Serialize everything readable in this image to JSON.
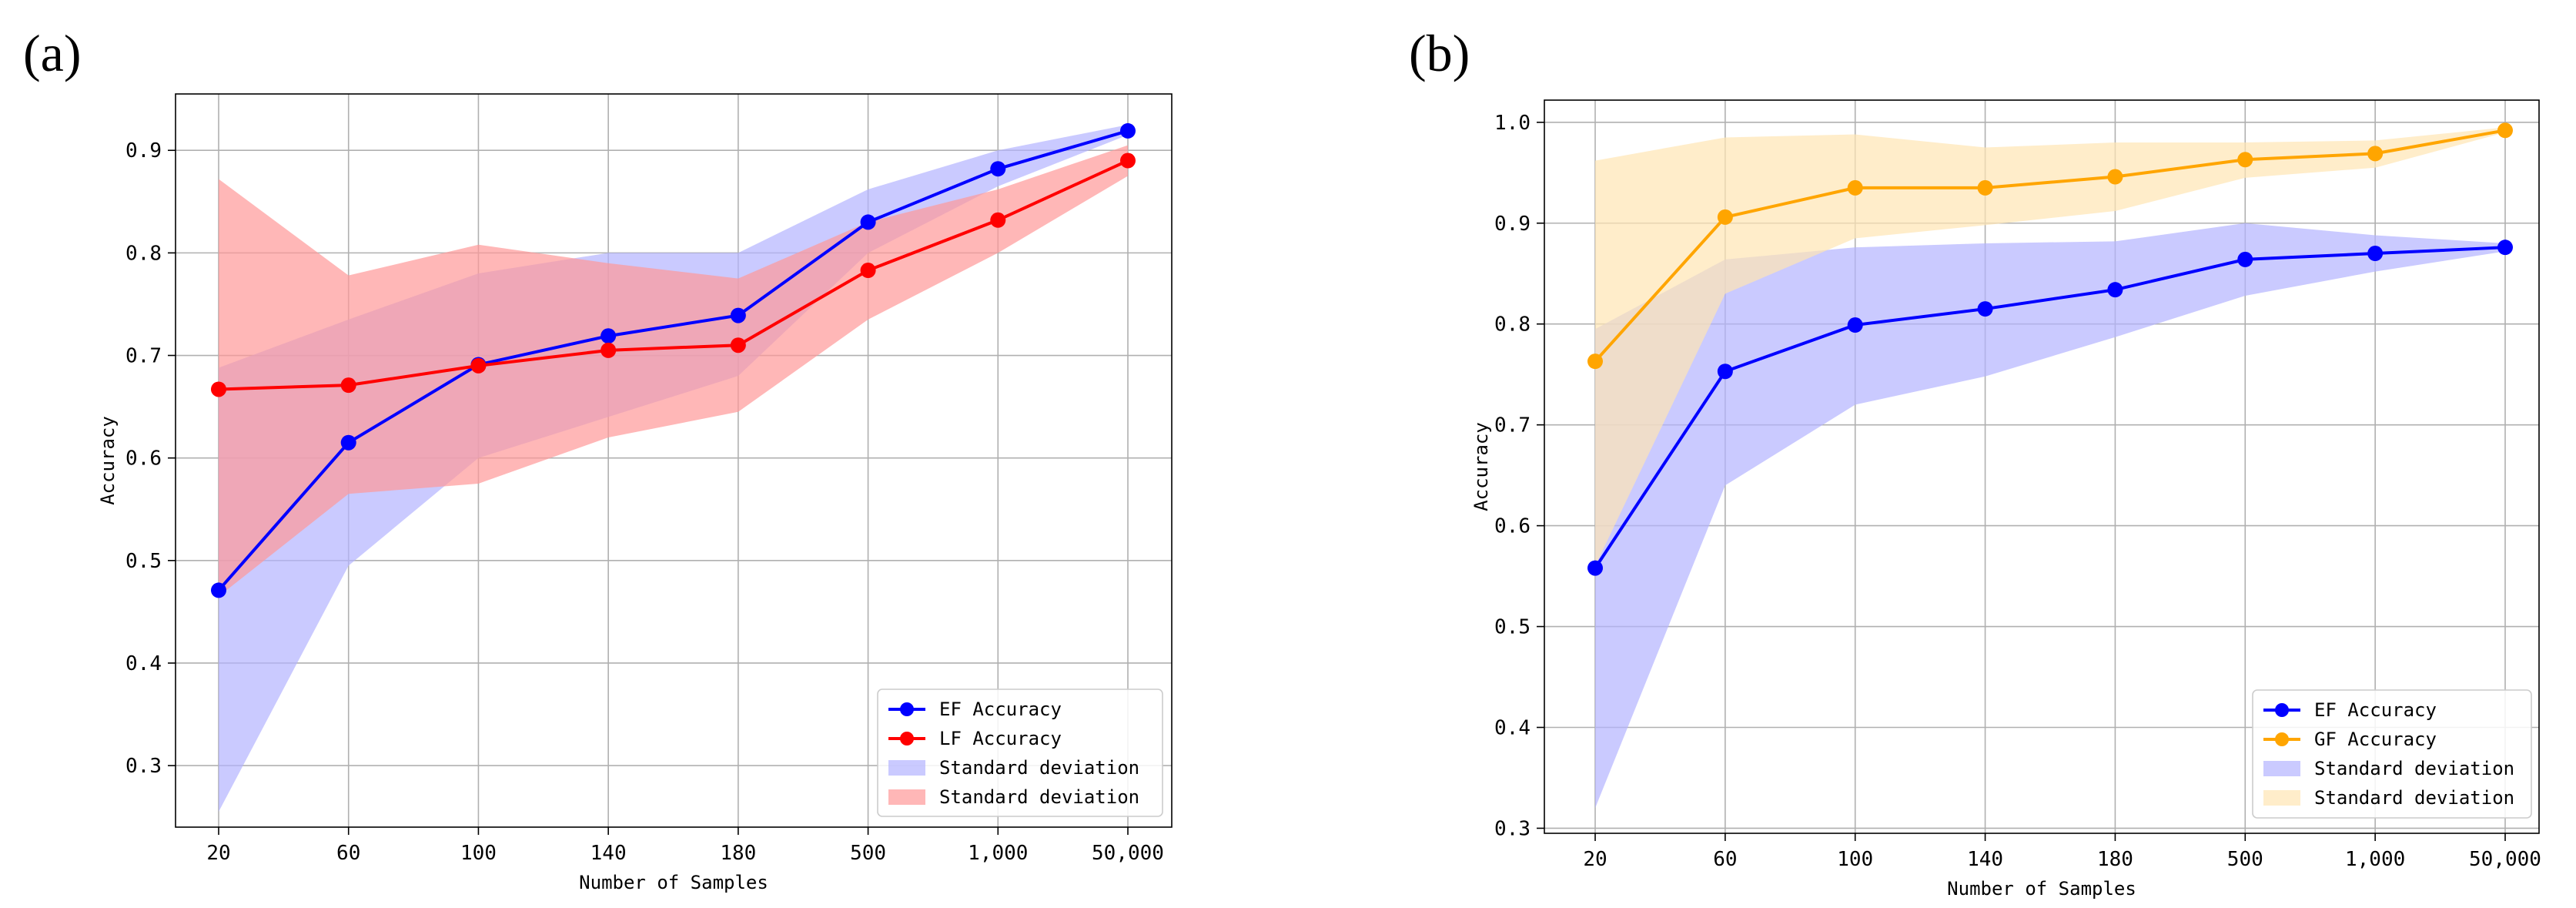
{
  "chart_data": [
    {
      "type": "line",
      "panel_label": "(a)",
      "categories": [
        "20",
        "60",
        "100",
        "140",
        "180",
        "500",
        "1,000",
        "50,000"
      ],
      "xlabel": "Number of Samples",
      "ylabel": "Accuracy",
      "ylim": [
        0.24,
        0.955
      ],
      "yticks": [
        "0.3",
        "0.4",
        "0.5",
        "0.6",
        "0.7",
        "0.8",
        "0.9"
      ],
      "grid": true,
      "legend_position": "lower-right",
      "series": [
        {
          "name": "EF Accuracy",
          "color": "#0000ff",
          "values": [
            0.471,
            0.615,
            0.691,
            0.719,
            0.739,
            0.83,
            0.882,
            0.919
          ],
          "lower": [
            0.255,
            0.495,
            0.6,
            0.64,
            0.68,
            0.8,
            0.865,
            0.915
          ],
          "upper": [
            0.688,
            0.735,
            0.78,
            0.8,
            0.8,
            0.862,
            0.9,
            0.925
          ],
          "band_color": "#b3b3ff"
        },
        {
          "name": "LF Accuracy",
          "color": "#ff0000",
          "values": [
            0.667,
            0.671,
            0.69,
            0.705,
            0.71,
            0.783,
            0.832,
            0.89
          ],
          "lower": [
            0.465,
            0.565,
            0.575,
            0.62,
            0.645,
            0.735,
            0.8,
            0.875
          ],
          "upper": [
            0.872,
            0.778,
            0.808,
            0.79,
            0.775,
            0.83,
            0.862,
            0.905
          ],
          "band_color": "#ff9999"
        }
      ],
      "legend": [
        "EF Accuracy",
        "LF Accuracy",
        "Standard deviation",
        "Standard deviation"
      ]
    },
    {
      "type": "line",
      "panel_label": "(b)",
      "categories": [
        "20",
        "60",
        "100",
        "140",
        "180",
        "500",
        "1,000",
        "50,000"
      ],
      "xlabel": "Number of Samples",
      "ylabel": "Accuracy",
      "ylim": [
        0.295,
        1.022
      ],
      "yticks": [
        "0.3",
        "0.4",
        "0.5",
        "0.6",
        "0.7",
        "0.8",
        "0.9",
        "1.0"
      ],
      "grid": true,
      "legend_position": "lower-right",
      "series": [
        {
          "name": "EF Accuracy",
          "color": "#0000ff",
          "values": [
            0.558,
            0.753,
            0.799,
            0.815,
            0.834,
            0.864,
            0.87,
            0.876
          ],
          "lower": [
            0.32,
            0.64,
            0.72,
            0.748,
            0.787,
            0.828,
            0.852,
            0.872
          ],
          "upper": [
            0.795,
            0.864,
            0.876,
            0.88,
            0.882,
            0.9,
            0.888,
            0.88
          ],
          "band_color": "#b3b3ff"
        },
        {
          "name": "GF Accuracy",
          "color": "#ffa500",
          "values": [
            0.763,
            0.906,
            0.935,
            0.935,
            0.946,
            0.963,
            0.969,
            0.992
          ],
          "lower": [
            0.56,
            0.83,
            0.885,
            0.898,
            0.912,
            0.945,
            0.955,
            0.99
          ],
          "upper": [
            0.962,
            0.985,
            0.988,
            0.975,
            0.98,
            0.98,
            0.982,
            0.995
          ],
          "band_color": "#ffe6b3"
        }
      ],
      "legend": [
        "EF Accuracy",
        "GF Accuracy",
        "Standard deviation",
        "Standard deviation"
      ]
    }
  ]
}
